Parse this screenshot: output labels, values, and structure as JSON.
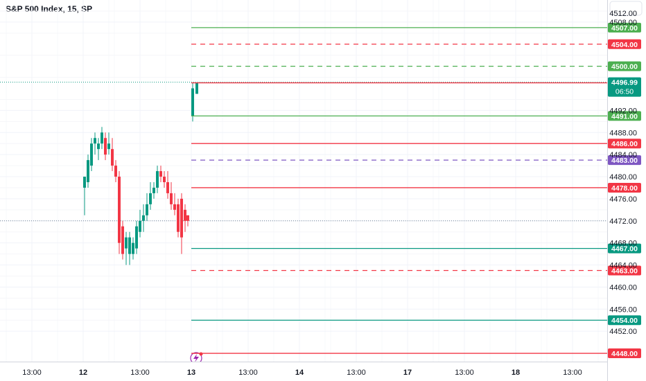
{
  "header": {
    "title": "S&P 500 Index, 15, SP"
  },
  "chart_data": {
    "type": "candlestick",
    "title": "S&P 500 Index, 15, SP",
    "ylim": [
      4446.5,
      4512
    ],
    "grid": true,
    "y_ticks": [
      4452,
      4456,
      4460,
      4464,
      4468,
      4472,
      4476,
      4480,
      4484,
      4488,
      4492,
      4508
    ],
    "y_ticks_partial": [
      "4512.00"
    ],
    "x_ticks": [
      "13:00",
      "12",
      "13:00",
      "13",
      "13:00",
      "14",
      "13:00",
      "17",
      "13:00",
      "18",
      "13:00"
    ],
    "x_tick_bold": [
      false,
      true,
      false,
      true,
      false,
      true,
      false,
      true,
      false,
      true,
      false
    ],
    "candles": [
      {
        "o": 4478,
        "h": 4480,
        "l": 4473,
        "c": 4480
      },
      {
        "o": 4479,
        "h": 4484,
        "l": 4478,
        "c": 4483
      },
      {
        "o": 4482,
        "h": 4487,
        "l": 4481,
        "c": 4486
      },
      {
        "o": 4486,
        "h": 4488,
        "l": 4484,
        "c": 4487
      },
      {
        "o": 4485,
        "h": 4487,
        "l": 4483,
        "c": 4486
      },
      {
        "o": 4486,
        "h": 4489,
        "l": 4485,
        "c": 4488
      },
      {
        "o": 4487,
        "h": 4488,
        "l": 4483,
        "c": 4484
      },
      {
        "o": 4485,
        "h": 4488,
        "l": 4484,
        "c": 4486
      },
      {
        "o": 4485,
        "h": 4487,
        "l": 4481,
        "c": 4482
      },
      {
        "o": 4482,
        "h": 4483,
        "l": 4479,
        "c": 4480
      },
      {
        "o": 4480,
        "h": 4481,
        "l": 4466,
        "c": 4468
      },
      {
        "o": 4471,
        "h": 4472,
        "l": 4465,
        "c": 4466
      },
      {
        "o": 4467,
        "h": 4470,
        "l": 4464,
        "c": 4469
      },
      {
        "o": 4466,
        "h": 4470,
        "l": 4464,
        "c": 4469
      },
      {
        "o": 4466,
        "h": 4469,
        "l": 4465,
        "c": 4468
      },
      {
        "o": 4467,
        "h": 4472,
        "l": 4466,
        "c": 4471
      },
      {
        "o": 4470,
        "h": 4474,
        "l": 4469,
        "c": 4472
      },
      {
        "o": 4472,
        "h": 4475,
        "l": 4470,
        "c": 4473
      },
      {
        "o": 4473,
        "h": 4477,
        "l": 4472,
        "c": 4475
      },
      {
        "o": 4475,
        "h": 4479,
        "l": 4474,
        "c": 4477
      },
      {
        "o": 4477,
        "h": 4479,
        "l": 4476,
        "c": 4478
      },
      {
        "o": 4478,
        "h": 4482,
        "l": 4477,
        "c": 4481
      },
      {
        "o": 4481,
        "h": 4482,
        "l": 4479,
        "c": 4480
      },
      {
        "o": 4480,
        "h": 4481,
        "l": 4478,
        "c": 4479
      },
      {
        "o": 4479,
        "h": 4481,
        "l": 4476,
        "c": 4477
      },
      {
        "o": 4477,
        "h": 4479,
        "l": 4474,
        "c": 4475
      },
      {
        "o": 4475,
        "h": 4477,
        "l": 4473,
        "c": 4474
      },
      {
        "o": 4475,
        "h": 4476,
        "l": 4469,
        "c": 4470
      },
      {
        "o": 4476,
        "h": 4477,
        "l": 4466,
        "c": 4469
      },
      {
        "o": 4474,
        "h": 4475,
        "l": 4470,
        "c": 4472
      },
      {
        "o": 4473,
        "h": 4473,
        "l": 4471,
        "c": 4472
      },
      {
        "o": 4491,
        "h": 4497,
        "l": 4490,
        "c": 4496
      },
      {
        "o": 4495,
        "h": 4497,
        "l": 4495,
        "c": 4497
      }
    ],
    "levels": [
      {
        "value": 4507.0,
        "label": "4507.00",
        "color": "#4caf50",
        "style": "solid"
      },
      {
        "value": 4504.0,
        "label": "4504.00",
        "color": "#f23645",
        "style": "dashed"
      },
      {
        "value": 4500.0,
        "label": "4500.00",
        "color": "#4caf50",
        "style": "dashed"
      },
      {
        "value": 4497.0,
        "label": "4497.00",
        "color": "#f23645",
        "style": "solid"
      },
      {
        "value": 4491.0,
        "label": "4491.00",
        "color": "#4caf50",
        "style": "solid"
      },
      {
        "value": 4486.0,
        "label": "4486.00",
        "color": "#f23645",
        "style": "solid"
      },
      {
        "value": 4483.0,
        "label": "4483.00",
        "color": "#7e57c2",
        "style": "dashed"
      },
      {
        "value": 4478.0,
        "label": "4478.00",
        "color": "#f23645",
        "style": "solid"
      },
      {
        "value": 4467.0,
        "label": "4467.00",
        "color": "#089981",
        "style": "solid"
      },
      {
        "value": 4463.0,
        "label": "4463.00",
        "color": "#f23645",
        "style": "dashed"
      },
      {
        "value": 4454.0,
        "label": "4454.00",
        "color": "#089981",
        "style": "solid"
      },
      {
        "value": 4448.0,
        "label": "4448.00",
        "color": "#f23645",
        "style": "solid"
      }
    ],
    "current_price": {
      "value": 4496.99,
      "label": "4496.99",
      "countdown": "06:50",
      "color": "#089981"
    },
    "prev_close_value": 4472,
    "colors": {
      "up": "#089981",
      "down": "#f23645",
      "grid": "#f0f3fa",
      "axis_text": "#131722"
    }
  }
}
